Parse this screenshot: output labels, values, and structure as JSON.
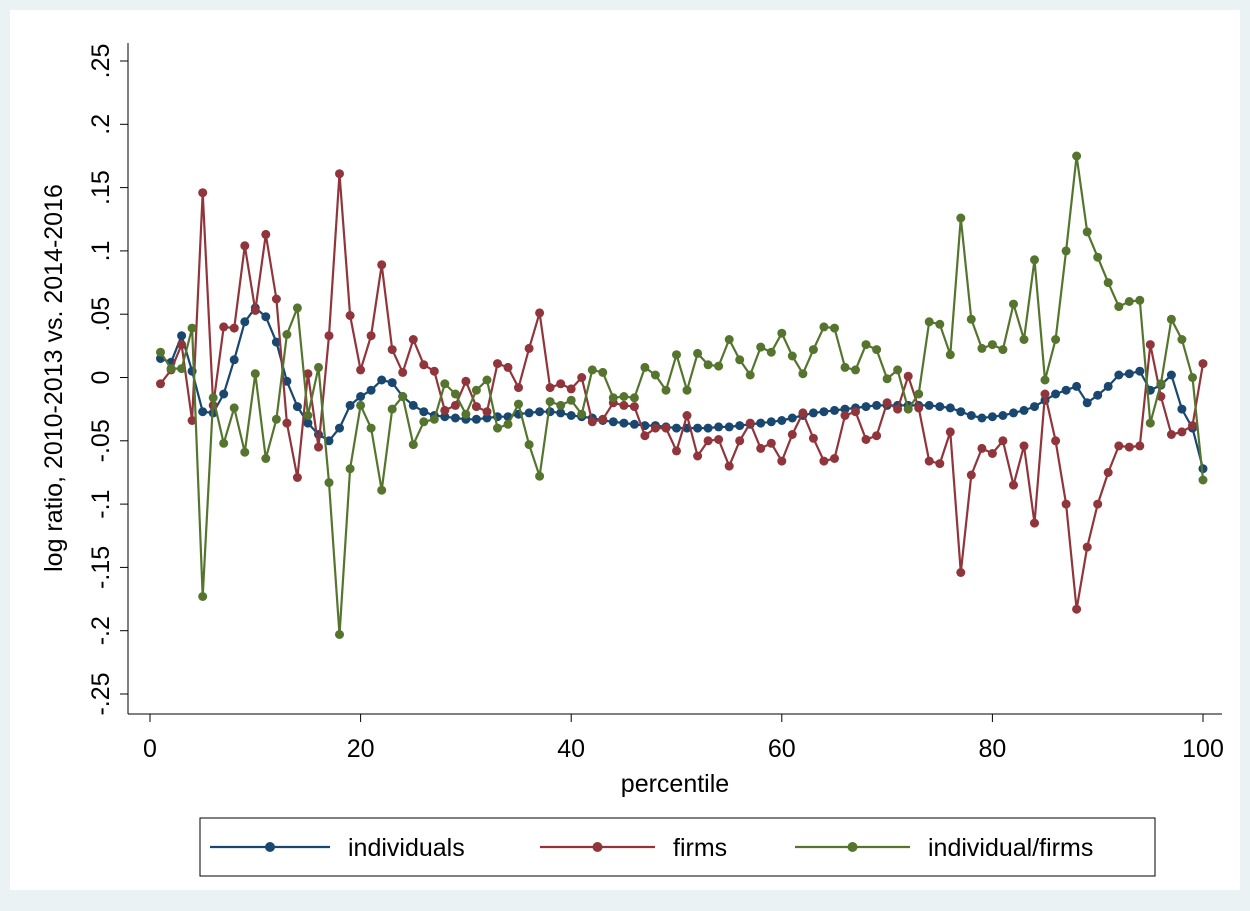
{
  "chart_data": {
    "type": "line",
    "title": "",
    "xlabel": "percentile",
    "ylabel": "log ratio, 2010-2013 vs. 2014-2016",
    "xlim": [
      0,
      100
    ],
    "ylim": [
      -0.25,
      0.25
    ],
    "x_ticks": [
      0,
      20,
      40,
      60,
      80,
      100
    ],
    "x_tick_labels": [
      "0",
      "20",
      "40",
      "60",
      "80",
      "100"
    ],
    "y_ticks": [
      -0.25,
      -0.2,
      -0.15,
      -0.1,
      -0.05,
      0,
      0.05,
      0.1,
      0.15,
      0.2,
      0.25
    ],
    "y_tick_labels": [
      "-.25",
      "-.2",
      "-.15",
      "-.1",
      "-.05",
      "0",
      ".05",
      ".1",
      ".15",
      ".2",
      ".25"
    ],
    "grid": true,
    "legend_position": "bottom",
    "x": [
      1,
      2,
      3,
      4,
      5,
      6,
      7,
      8,
      9,
      10,
      11,
      12,
      13,
      14,
      15,
      16,
      17,
      18,
      19,
      20,
      21,
      22,
      23,
      24,
      25,
      26,
      27,
      28,
      29,
      30,
      31,
      32,
      33,
      34,
      35,
      36,
      37,
      38,
      39,
      40,
      41,
      42,
      43,
      44,
      45,
      46,
      47,
      48,
      49,
      50,
      51,
      52,
      53,
      54,
      55,
      56,
      57,
      58,
      59,
      60,
      61,
      62,
      63,
      64,
      65,
      66,
      67,
      68,
      69,
      70,
      71,
      72,
      73,
      74,
      75,
      76,
      77,
      78,
      79,
      80,
      81,
      82,
      83,
      84,
      85,
      86,
      87,
      88,
      89,
      90,
      91,
      92,
      93,
      94,
      95,
      96,
      97,
      98,
      99,
      100
    ],
    "series": [
      {
        "name": "individuals",
        "color": "#1a476f",
        "values": [
          0.015,
          0.012,
          0.033,
          0.005,
          -0.027,
          -0.028,
          -0.013,
          0.014,
          0.044,
          0.055,
          0.048,
          0.028,
          -0.003,
          -0.023,
          -0.036,
          -0.045,
          -0.05,
          -0.04,
          -0.022,
          -0.015,
          -0.01,
          -0.002,
          -0.004,
          -0.015,
          -0.022,
          -0.027,
          -0.03,
          -0.031,
          -0.032,
          -0.033,
          -0.033,
          -0.032,
          -0.031,
          -0.031,
          -0.029,
          -0.028,
          -0.027,
          -0.027,
          -0.028,
          -0.03,
          -0.031,
          -0.032,
          -0.034,
          -0.035,
          -0.036,
          -0.037,
          -0.038,
          -0.038,
          -0.039,
          -0.04,
          -0.04,
          -0.04,
          -0.04,
          -0.039,
          -0.039,
          -0.038,
          -0.037,
          -0.036,
          -0.035,
          -0.034,
          -0.032,
          -0.03,
          -0.028,
          -0.027,
          -0.026,
          -0.025,
          -0.024,
          -0.023,
          -0.022,
          -0.022,
          -0.022,
          -0.022,
          -0.022,
          -0.022,
          -0.023,
          -0.024,
          -0.027,
          -0.03,
          -0.032,
          -0.031,
          -0.03,
          -0.028,
          -0.026,
          -0.023,
          -0.018,
          -0.013,
          -0.01,
          -0.007,
          -0.02,
          -0.014,
          -0.007,
          0.002,
          0.003,
          0.005,
          -0.01,
          -0.006,
          0.002,
          -0.025,
          -0.04,
          -0.072
        ]
      },
      {
        "name": "firms",
        "color": "#90353b",
        "values": [
          -0.005,
          0.006,
          0.026,
          -0.034,
          0.146,
          -0.022,
          0.04,
          0.039,
          0.104,
          0.053,
          0.113,
          0.062,
          -0.036,
          -0.079,
          0.003,
          -0.055,
          0.033,
          0.161,
          0.049,
          0.006,
          0.033,
          0.089,
          0.022,
          0.004,
          0.03,
          0.01,
          0.005,
          -0.026,
          -0.022,
          -0.003,
          -0.023,
          -0.027,
          0.011,
          0.008,
          -0.008,
          0.023,
          0.051,
          -0.008,
          -0.005,
          -0.009,
          0.0,
          -0.035,
          -0.033,
          -0.02,
          -0.022,
          -0.023,
          -0.046,
          -0.04,
          -0.04,
          -0.058,
          -0.03,
          -0.062,
          -0.05,
          -0.049,
          -0.07,
          -0.05,
          -0.036,
          -0.056,
          -0.052,
          -0.066,
          -0.045,
          -0.028,
          -0.048,
          -0.066,
          -0.064,
          -0.03,
          -0.027,
          -0.049,
          -0.046,
          -0.02,
          -0.025,
          0.001,
          -0.024,
          -0.066,
          -0.068,
          -0.043,
          -0.154,
          -0.077,
          -0.056,
          -0.06,
          -0.05,
          -0.085,
          -0.054,
          -0.115,
          -0.013,
          -0.05,
          -0.1,
          -0.183,
          -0.134,
          -0.1,
          -0.075,
          -0.054,
          -0.055,
          -0.054,
          0.026,
          -0.015,
          -0.045,
          -0.043,
          -0.038,
          0.011
        ]
      },
      {
        "name": "individual/firms",
        "color": "#55752f",
        "values": [
          0.02,
          0.007,
          0.007,
          0.039,
          -0.173,
          -0.016,
          -0.052,
          -0.024,
          -0.059,
          0.003,
          -0.064,
          -0.033,
          0.034,
          0.055,
          -0.03,
          0.008,
          -0.083,
          -0.203,
          -0.072,
          -0.022,
          -0.04,
          -0.089,
          -0.025,
          -0.015,
          -0.053,
          -0.035,
          -0.033,
          -0.005,
          -0.013,
          -0.029,
          -0.01,
          -0.002,
          -0.04,
          -0.037,
          -0.021,
          -0.053,
          -0.078,
          -0.019,
          -0.022,
          -0.018,
          -0.029,
          0.006,
          0.004,
          -0.016,
          -0.015,
          -0.016,
          0.008,
          0.002,
          -0.01,
          0.018,
          -0.01,
          0.019,
          0.01,
          0.009,
          0.03,
          0.014,
          0.002,
          0.024,
          0.02,
          0.035,
          0.017,
          0.003,
          0.022,
          0.04,
          0.039,
          0.008,
          0.006,
          0.026,
          0.022,
          -0.001,
          0.006,
          -0.025,
          -0.013,
          0.044,
          0.042,
          0.018,
          0.126,
          0.046,
          0.023,
          0.026,
          0.022,
          0.058,
          0.03,
          0.093,
          -0.002,
          0.03,
          0.1,
          0.175,
          0.115,
          0.095,
          0.075,
          0.056,
          0.06,
          0.061,
          -0.036,
          -0.005,
          0.046,
          0.03,
          0.0,
          -0.081
        ]
      }
    ]
  }
}
